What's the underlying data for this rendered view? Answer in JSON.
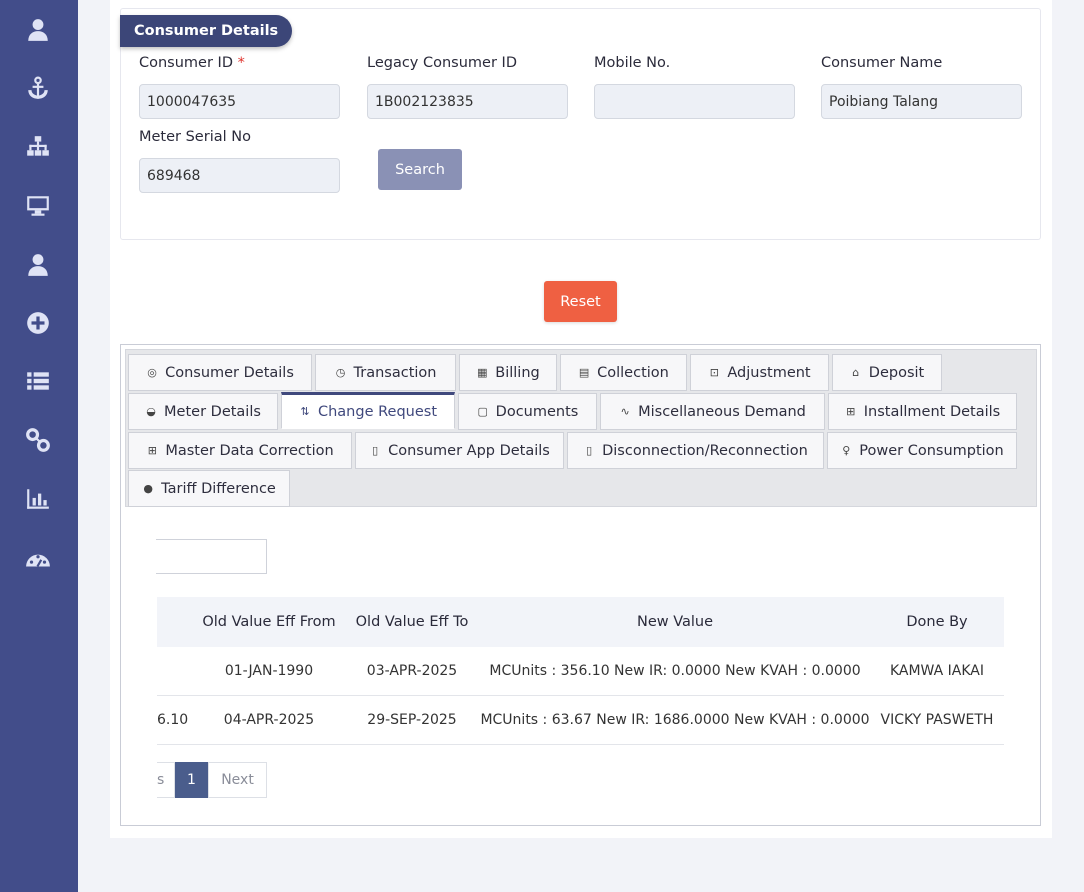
{
  "sidebar": {
    "icons": [
      "user-icon",
      "anchor-icon",
      "sitemap-icon",
      "desktop-icon",
      "user-icon",
      "plus-circle-icon",
      "list-icon",
      "link-icon",
      "bar-chart-icon",
      "gauge-icon"
    ]
  },
  "consumer_card": {
    "title": "Consumer Details",
    "consumer_id_label": "Consumer ID",
    "required_mark": "*",
    "consumer_id_value": "1000047635",
    "legacy_id_label": "Legacy Consumer ID",
    "legacy_id_value": "1B002123835",
    "mobile_label": "Mobile No.",
    "mobile_value": "",
    "consumer_name_label": "Consumer Name",
    "consumer_name_value": "Poibiang Talang",
    "meter_serial_label": "Meter Serial No",
    "meter_serial_value": "689468",
    "search_label": "Search"
  },
  "reset_label": "Reset",
  "tabs": [
    {
      "label": "Consumer Details",
      "icon": "◎"
    },
    {
      "label": "Transaction",
      "icon": "◷"
    },
    {
      "label": "Billing",
      "icon": "▦"
    },
    {
      "label": "Collection",
      "icon": "▤"
    },
    {
      "label": "Adjustment",
      "icon": "⊡"
    },
    {
      "label": "Deposit",
      "icon": "⌂"
    },
    {
      "label": "Meter Details",
      "icon": "◒"
    },
    {
      "label": "Change Request",
      "icon": "⇅"
    },
    {
      "label": "Documents",
      "icon": "▢"
    },
    {
      "label": "Miscellaneous Demand",
      "icon": "∿"
    },
    {
      "label": "Installment Details",
      "icon": "⊞"
    },
    {
      "label": "Master Data Correction",
      "icon": "⊞"
    },
    {
      "label": "Consumer App Details",
      "icon": "▯"
    },
    {
      "label": "Disconnection/Reconnection",
      "icon": "▯"
    },
    {
      "label": "Power Consumption",
      "icon": "♀"
    },
    {
      "label": "Tariff Difference",
      "icon": "●"
    }
  ],
  "active_tab": "Change Request",
  "table": {
    "headers": [
      "",
      "Old Value Eff From",
      "Old Value Eff To",
      "New Value",
      "Done By"
    ],
    "rows": [
      [
        "",
        "01-JAN-1990",
        "03-APR-2025",
        "MCUnits : 356.10 New IR: 0.0000 New KVAH : 0.0000",
        "KAMWA IAKAI"
      ],
      [
        "6.10",
        "04-APR-2025",
        "29-SEP-2025",
        "MCUnits : 63.67 New IR: 1686.0000 New KVAH : 0.0000",
        "VICKY PASWETH"
      ]
    ]
  },
  "pagination": {
    "prev_fragment": "s",
    "current": "1",
    "next": "Next"
  }
}
